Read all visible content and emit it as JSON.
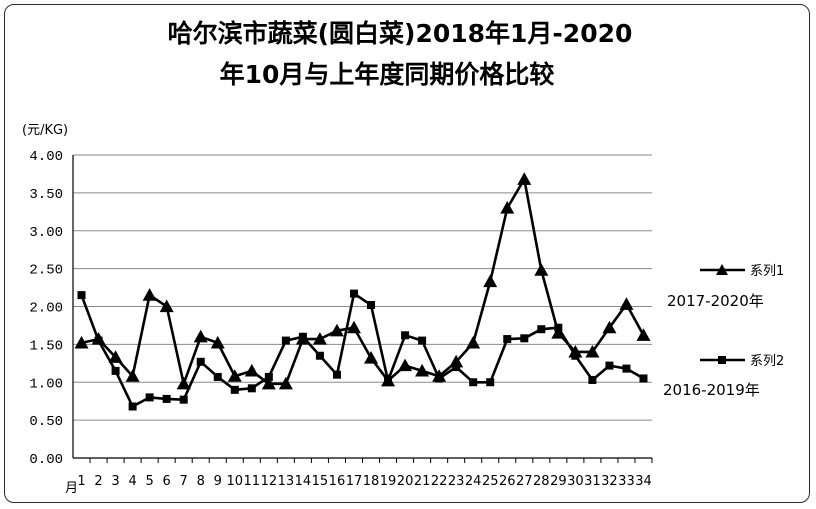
{
  "chart_data": {
    "type": "line",
    "title_line1": "哈尔滨市蔬菜(圆白菜)2018年1月-2020",
    "title_line2": "年10月与上年度同期价格比较",
    "ylabel": "(元/KG)",
    "x_axis_prefix": "月",
    "ylim": [
      0,
      4
    ],
    "y_ticks": [
      "0.00",
      "0.50",
      "1.00",
      "1.50",
      "2.00",
      "2.50",
      "3.00",
      "3.50",
      "4.00"
    ],
    "x": [
      1,
      2,
      3,
      4,
      5,
      6,
      7,
      8,
      9,
      10,
      11,
      12,
      13,
      14,
      15,
      16,
      17,
      18,
      19,
      20,
      21,
      22,
      23,
      24,
      25,
      26,
      27,
      28,
      29,
      30,
      31,
      32,
      33,
      34
    ],
    "grid": true,
    "legend_position": "right",
    "series": [
      {
        "name": "系列1",
        "marker": "triangle",
        "period_label": "2017-2020年",
        "values": [
          1.52,
          1.57,
          1.33,
          1.08,
          2.15,
          2.0,
          0.98,
          1.6,
          1.52,
          1.08,
          1.15,
          0.98,
          0.98,
          1.57,
          1.57,
          1.68,
          1.72,
          1.32,
          1.02,
          1.22,
          1.15,
          1.08,
          1.27,
          1.52,
          2.33,
          3.3,
          3.68,
          2.48,
          1.65,
          1.4,
          1.4,
          1.72,
          2.03,
          1.62
        ]
      },
      {
        "name": "系列2",
        "marker": "square",
        "period_label": "2016-2019年",
        "values": [
          2.15,
          1.55,
          1.15,
          0.68,
          0.8,
          0.78,
          0.77,
          1.27,
          1.07,
          0.9,
          0.92,
          1.07,
          1.55,
          1.6,
          1.35,
          1.1,
          2.17,
          2.02,
          1.02,
          1.62,
          1.55,
          1.05,
          1.2,
          1.0,
          1.0,
          1.57,
          1.58,
          1.7,
          1.72,
          1.35,
          1.03,
          1.22,
          1.18,
          1.05
        ]
      }
    ]
  },
  "colors": {
    "line": "#000000",
    "grid": "#8a8a8a",
    "frame": "#2b2b2b"
  }
}
